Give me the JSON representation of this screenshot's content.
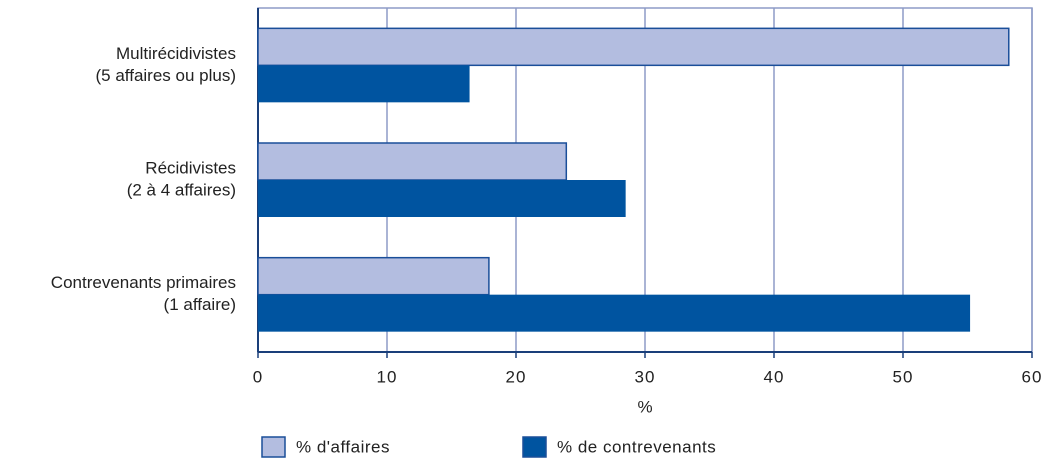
{
  "chart_data": {
    "type": "hbar",
    "categories": [
      [
        "Multirécidivistes",
        "(5 affaires ou plus)"
      ],
      [
        "Récidivistes",
        "(2 à 4 affaires)"
      ],
      [
        "Contrevenants primaires",
        "(1 affaire)"
      ]
    ],
    "series": [
      {
        "name": "% d'affaires",
        "color": "#b3bde0",
        "values": [
          58.2,
          23.9,
          17.9
        ]
      },
      {
        "name": "% de contrevenants",
        "color": "#0054a0",
        "values": [
          16.4,
          28.5,
          55.2
        ]
      }
    ],
    "xlabel": "%",
    "xlim": [
      0,
      60
    ],
    "xticks": [
      0,
      10,
      20,
      30,
      40,
      50,
      60
    ],
    "grid": true
  }
}
